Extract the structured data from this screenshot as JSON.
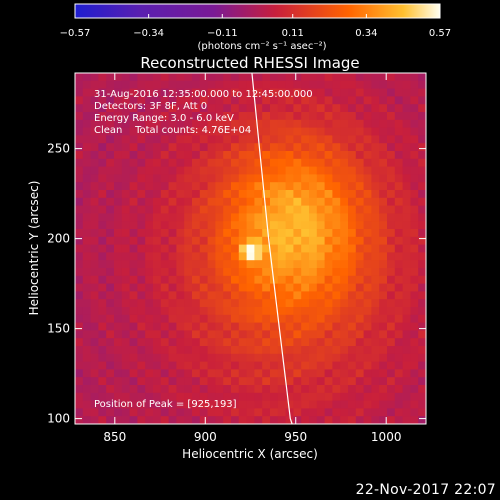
{
  "chart_data": {
    "type": "heatmap",
    "title": "Reconstructed RHESSI Image",
    "xlabel": "Heliocentric X (arcsec)",
    "ylabel": "Heliocentric Y (arcsec)",
    "xlim": [
      828,
      1022
    ],
    "ylim": [
      97,
      292
    ],
    "x_ticks": [
      850,
      900,
      950,
      1000
    ],
    "y_ticks": [
      100,
      150,
      200,
      250
    ],
    "colorbar": {
      "min": -0.57,
      "max": 0.57,
      "ticks": [
        -0.57,
        -0.34,
        -0.11,
        0.11,
        0.34,
        0.57
      ],
      "tick_labels": [
        "−0.57",
        "−0.34",
        "−0.11",
        "0.11",
        "0.34",
        "0.57"
      ],
      "unit_label": "(photons cm⁻² s⁻¹ asec⁻²)"
    },
    "annotations": [
      "31-Aug-2016 12:35:00.000 to 12:45:00.000",
      "Detectors: 3F 8F, Att 0",
      "Energy Range: 3.0 - 6.0 keV",
      "Clean    Total counts: 4.76E+04"
    ],
    "peak_label": "Position of Peak = [925,193]",
    "peak": {
      "x": 925,
      "y": 193,
      "value": 0.57
    },
    "sources": [
      {
        "x": 925,
        "y": 193,
        "sx": 4,
        "sy": 4,
        "amp": 0.3
      },
      {
        "x": 950,
        "y": 210,
        "sx": 28,
        "sy": 32,
        "amp": 0.26
      },
      {
        "x": 945,
        "y": 185,
        "sx": 45,
        "sy": 55,
        "amp": 0.2
      }
    ],
    "limb": [
      [
        925,
        300
      ],
      [
        930,
        250
      ],
      [
        935,
        200
      ],
      [
        941,
        150
      ],
      [
        947,
        100
      ],
      [
        948,
        97
      ]
    ],
    "colors": {
      "limb": "#ffffff"
    }
  },
  "footer": {
    "date_stamp": "22-Nov-2017 22:07"
  }
}
